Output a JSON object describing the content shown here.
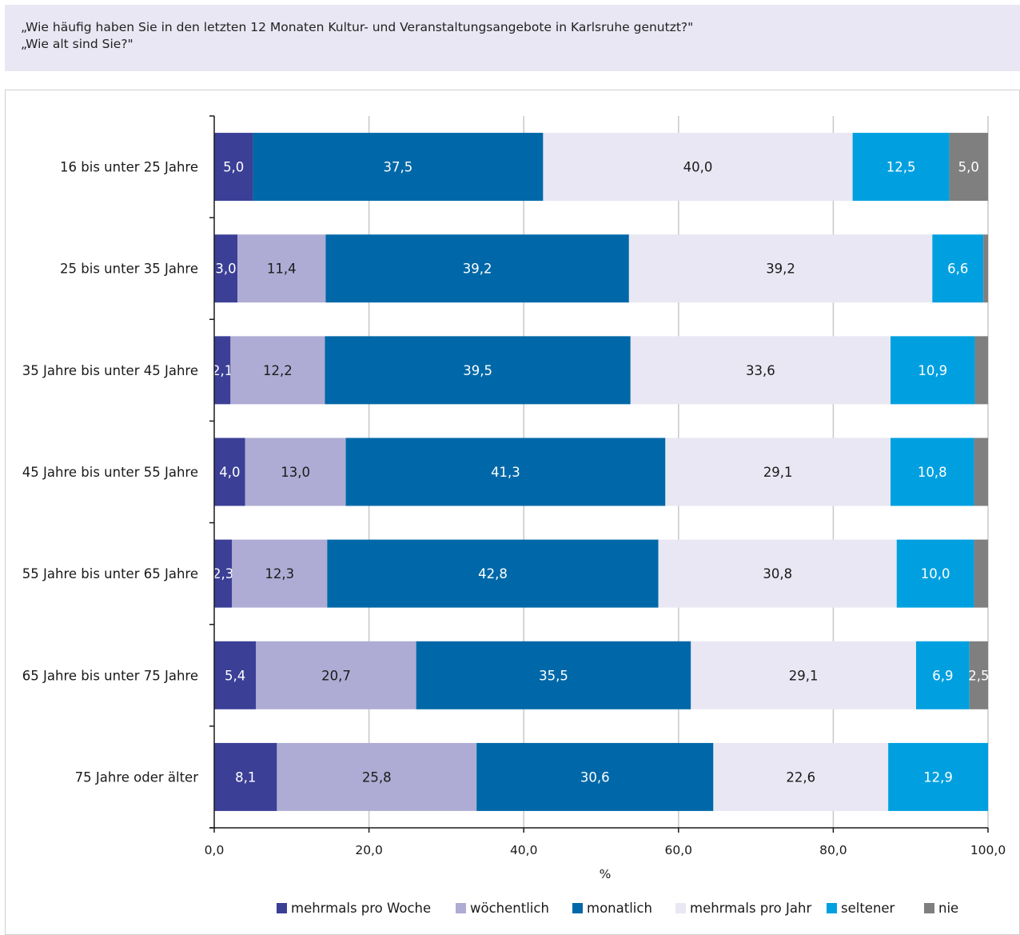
{
  "question": {
    "line1": "„Wie häufig haben Sie in den letzten 12 Monaten Kultur- und Veranstaltungsangebote in Karlsruhe genutzt?\"",
    "line2": "„Wie alt sind Sie?\""
  },
  "chart_data": {
    "type": "bar",
    "orientation": "horizontal",
    "stacked": true,
    "xlabel": "%",
    "ylabel": "",
    "xlim": [
      0,
      100
    ],
    "x_ticks": [
      "0,0",
      "20,0",
      "40,0",
      "60,0",
      "80,0",
      "100,0"
    ],
    "grid": "vertical",
    "legend_position": "bottom",
    "categories": [
      "16 bis unter 25 Jahre",
      "25 bis unter 35 Jahre",
      "35 Jahre bis unter 45 Jahre",
      "45 Jahre bis unter 55 Jahre",
      "55 Jahre bis unter 65 Jahre",
      "65 Jahre bis unter 75 Jahre",
      "75 Jahre oder älter"
    ],
    "series": [
      {
        "name": "mehrmals pro Woche",
        "color": "#3b3f96",
        "label_color": "#ffffff",
        "values": [
          5.0,
          3.0,
          2.1,
          4.0,
          2.3,
          5.4,
          8.1
        ],
        "labels": [
          "5,0",
          "3,0",
          "2,1",
          "4,0",
          "2,3",
          "5,4",
          "8,1"
        ]
      },
      {
        "name": "wöchentlich",
        "color": "#aeacd4",
        "label_color": "#1a1a1a",
        "values": [
          0,
          11.4,
          12.2,
          13.0,
          12.3,
          20.7,
          25.8
        ],
        "labels": [
          "",
          "11,4",
          "12,2",
          "13,0",
          "12,3",
          "20,7",
          "25,8"
        ]
      },
      {
        "name": "monatlich",
        "color": "#0068a8",
        "label_color": "#ffffff",
        "values": [
          37.5,
          39.2,
          39.5,
          41.3,
          42.8,
          35.5,
          30.6
        ],
        "labels": [
          "37,5",
          "39,2",
          "39,5",
          "41,3",
          "42,8",
          "35,5",
          "30,6"
        ]
      },
      {
        "name": "mehrmals pro Jahr",
        "color": "#e8e7f3",
        "label_color": "#1a1a1a",
        "values": [
          40.0,
          39.2,
          33.6,
          29.1,
          30.8,
          29.1,
          22.6
        ],
        "labels": [
          "40,0",
          "39,2",
          "33,6",
          "29,1",
          "30,8",
          "29,1",
          "22,6"
        ]
      },
      {
        "name": "seltener",
        "color": "#00a0e0",
        "label_color": "#ffffff",
        "values": [
          12.5,
          6.6,
          10.9,
          10.8,
          10.0,
          6.9,
          12.9
        ],
        "labels": [
          "12,5",
          "6,6",
          "10,9",
          "10,8",
          "10,0",
          "6,9",
          "12,9"
        ]
      },
      {
        "name": "nie",
        "color": "#7f7f7f",
        "label_color": "#ffffff",
        "values": [
          5.0,
          0.6,
          1.7,
          1.8,
          1.8,
          2.5,
          0
        ],
        "labels": [
          "5,0",
          "",
          "",
          "",
          "",
          "2,5",
          ""
        ]
      }
    ]
  }
}
